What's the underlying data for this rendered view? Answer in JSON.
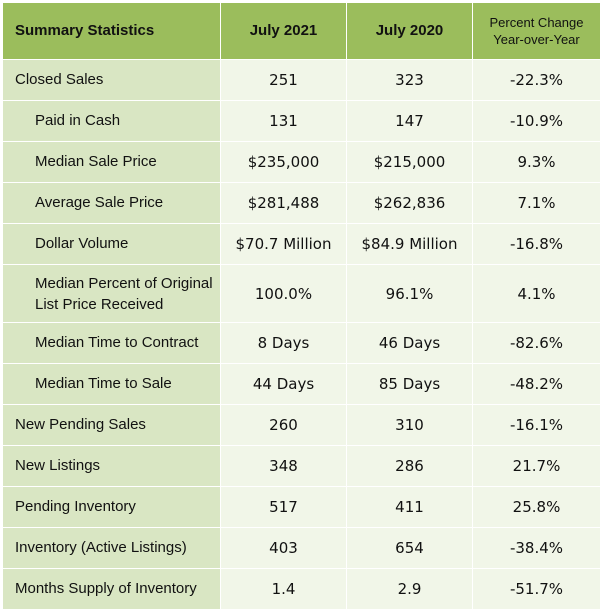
{
  "header": {
    "col0": "Summary Statistics",
    "col1": "July 2021",
    "col2": "July 2020",
    "col3_line1": "Percent Change",
    "col3_line2": "Year-over-Year"
  },
  "rows": [
    {
      "label": "Closed Sales",
      "v2021": "251",
      "v2020": "323",
      "pct": "-22.3%"
    },
    {
      "label": "Paid in Cash",
      "v2021": "131",
      "v2020": "147",
      "pct": "-10.9%"
    },
    {
      "label": "Median Sale Price",
      "v2021": "$235,000",
      "v2020": "$215,000",
      "pct": "9.3%"
    },
    {
      "label": "Average Sale Price",
      "v2021": "$281,488",
      "v2020": "$262,836",
      "pct": "7.1%"
    },
    {
      "label": "Dollar Volume",
      "v2021": "$70.7 Million",
      "v2020": "$84.9 Million",
      "pct": "-16.8%"
    },
    {
      "label_line1": "Median Percent of Original",
      "label_line2": "List Price Received",
      "v2021": "100.0%",
      "v2020": "96.1%",
      "pct": "4.1%"
    },
    {
      "label": "Median Time to Contract",
      "v2021": "8 Days",
      "v2020": "46 Days",
      "pct": "-82.6%"
    },
    {
      "label": "Median Time to Sale",
      "v2021": "44 Days",
      "v2020": "85 Days",
      "pct": "-48.2%"
    },
    {
      "label": "New Pending Sales",
      "v2021": "260",
      "v2020": "310",
      "pct": "-16.1%"
    },
    {
      "label": "New Listings",
      "v2021": "348",
      "v2020": "286",
      "pct": "21.7%"
    },
    {
      "label": "Pending Inventory",
      "v2021": "517",
      "v2020": "411",
      "pct": "25.8%"
    },
    {
      "label": "Inventory (Active Listings)",
      "v2021": "403",
      "v2020": "654",
      "pct": "-38.4%"
    },
    {
      "label": "Months Supply of Inventory",
      "v2021": "1.4",
      "v2020": "2.9",
      "pct": "-51.7%"
    }
  ]
}
